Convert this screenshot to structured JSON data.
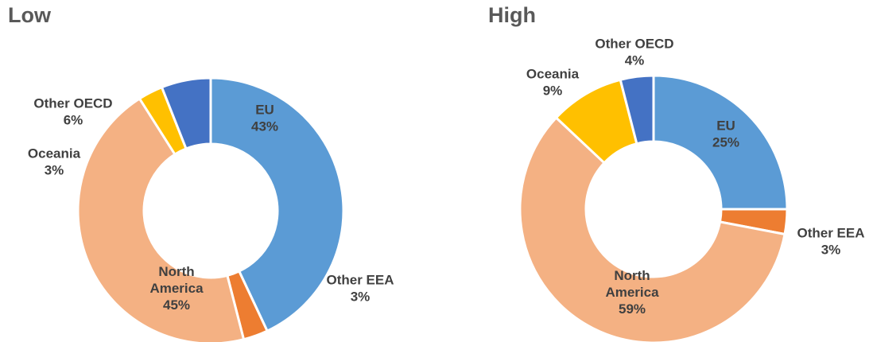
{
  "chart_data": [
    {
      "type": "pie",
      "title": "Low",
      "categories": [
        "EU",
        "Other EEA",
        "North America",
        "Oceania",
        "Other OECD"
      ],
      "values": [
        43,
        3,
        45,
        3,
        6
      ],
      "value_labels": [
        "43%",
        "3%",
        "45%",
        "3%",
        "6%"
      ],
      "colors": [
        "#5B9BD5",
        "#ED7D31",
        "#F4B183",
        "#FFC000",
        "#4472C4"
      ],
      "donut": true
    },
    {
      "type": "pie",
      "title": "High",
      "categories": [
        "EU",
        "Other EEA",
        "North America",
        "Oceania",
        "Other OECD"
      ],
      "values": [
        25,
        3,
        59,
        9,
        4
      ],
      "value_labels": [
        "25%",
        "3%",
        "59%",
        "9%",
        "4%"
      ],
      "colors": [
        "#5B9BD5",
        "#ED7D31",
        "#F4B183",
        "#FFC000",
        "#4472C4"
      ],
      "donut": true
    }
  ]
}
